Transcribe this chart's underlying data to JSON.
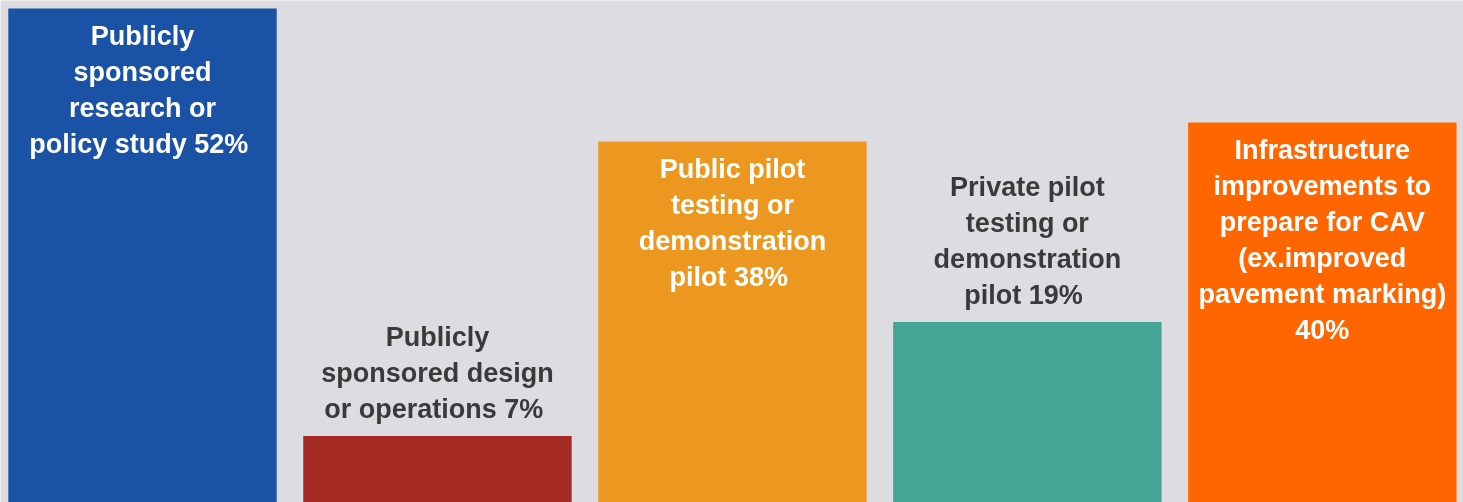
{
  "chart_data": {
    "type": "bar",
    "categories": [
      "Publicly sponsored research or policy study",
      "Publicly sponsored design or operations",
      "Public pilot testing or demonstration pilot",
      "Private pilot testing or demonstration pilot",
      "Infrastructure improvements to prepare for CAV (ex.improved pavement marking)"
    ],
    "values": [
      52,
      7,
      38,
      19,
      40
    ],
    "value_labels": [
      "52%",
      "7%",
      "38%",
      "19%",
      "40%"
    ],
    "colors": [
      "#1a52a5",
      "#a52a24",
      "#ec971f",
      "#45a595",
      "#ff6600"
    ]
  }
}
